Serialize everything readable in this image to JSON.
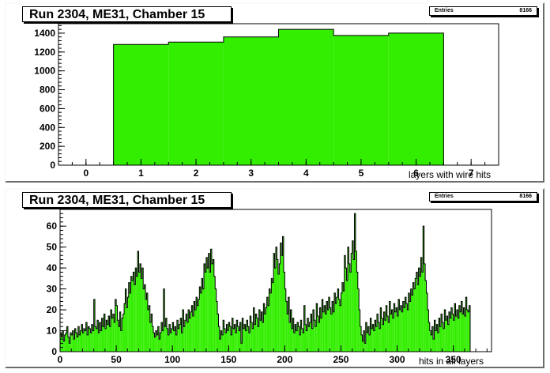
{
  "colors": {
    "fill": "#33ee00",
    "line": "#000000"
  },
  "chart_data": [
    {
      "type": "bar",
      "title": "Run 2304, ME31, Chamber 15",
      "stats": {
        "label": "Entries",
        "value": "8166"
      },
      "xlabel": "layers with wire hits",
      "xlim": [
        -0.5,
        7.5
      ],
      "ylim": [
        0,
        1500
      ],
      "xticks": [
        0,
        1,
        2,
        3,
        4,
        5,
        6,
        7
      ],
      "yticks": [
        0,
        200,
        400,
        600,
        800,
        1000,
        1200,
        1400
      ],
      "bins": [
        {
          "x": 1,
          "value": 1280
        },
        {
          "x": 2,
          "value": 1305
        },
        {
          "x": 3,
          "value": 1360
        },
        {
          "x": 4,
          "value": 1440
        },
        {
          "x": 5,
          "value": 1375
        },
        {
          "x": 6,
          "value": 1400
        }
      ]
    },
    {
      "type": "bar",
      "title": "Run 2304, ME31, Chamber 15",
      "stats": {
        "label": "Entries",
        "value": "8166"
      },
      "xlabel": "hits in all layers",
      "xlim": [
        0,
        384
      ],
      "ylim": [
        0,
        68
      ],
      "xticks": [
        0,
        50,
        100,
        150,
        200,
        250,
        300,
        350
      ],
      "yticks": [
        0,
        10,
        20,
        30,
        40,
        50,
        60
      ],
      "values": [
        9,
        7,
        10,
        5,
        8,
        9,
        12,
        7,
        4,
        9,
        8,
        10,
        6,
        11,
        9,
        7,
        12,
        8,
        10,
        13,
        9,
        11,
        10,
        14,
        8,
        12,
        11,
        9,
        13,
        10,
        25,
        12,
        11,
        15,
        9,
        14,
        10,
        16,
        12,
        18,
        11,
        15,
        13,
        17,
        12,
        20,
        16,
        18,
        14,
        25,
        22,
        15,
        12,
        19,
        10,
        16,
        18,
        23,
        30,
        21,
        26,
        33,
        28,
        36,
        34,
        38,
        32,
        40,
        36,
        48,
        38,
        42,
        35,
        40,
        30,
        32,
        25,
        28,
        20,
        22,
        14,
        18,
        12,
        9,
        7,
        10,
        8,
        12,
        6,
        9,
        14,
        10,
        30,
        12,
        16,
        11,
        8,
        13,
        9,
        11,
        14,
        10,
        12,
        8,
        15,
        11,
        13,
        16,
        9,
        20,
        12,
        15,
        18,
        14,
        20,
        16,
        19,
        22,
        17,
        24,
        20,
        26,
        22,
        25,
        31,
        28,
        35,
        30,
        42,
        38,
        45,
        40,
        47,
        38,
        49,
        42,
        44,
        36,
        30,
        24,
        18,
        12,
        6,
        10,
        8,
        15,
        11,
        9,
        13,
        10,
        14,
        12,
        8,
        16,
        11,
        13,
        9,
        15,
        12,
        10,
        14,
        4,
        16,
        11,
        13,
        10,
        15,
        12,
        9,
        17,
        14,
        11,
        21,
        13,
        18,
        16,
        12,
        20,
        15,
        19,
        14,
        23,
        18,
        21,
        26,
        22,
        30,
        28,
        35,
        33,
        47,
        40,
        50,
        44,
        37,
        42,
        52,
        46,
        55,
        38,
        30,
        24,
        18,
        26,
        14,
        20,
        11,
        16,
        9,
        13,
        10,
        14,
        12,
        8,
        15,
        11,
        9,
        22,
        13,
        10,
        16,
        12,
        14,
        18,
        11,
        20,
        15,
        12,
        23,
        17,
        14,
        21,
        16,
        25,
        19,
        22,
        18,
        24,
        20,
        26,
        21,
        18,
        24,
        19,
        28,
        23,
        26,
        30,
        25,
        22,
        28,
        33,
        29,
        46,
        40,
        34,
        50,
        42,
        38,
        47,
        53,
        44,
        66,
        48,
        38,
        30,
        20,
        12,
        8,
        5,
        10,
        4,
        14,
        9,
        12,
        8,
        16,
        11,
        13,
        10,
        15,
        12,
        18,
        14,
        11,
        21,
        16,
        13,
        19,
        15,
        22,
        17,
        14,
        24,
        18,
        20,
        16,
        23,
        19,
        21,
        17,
        25,
        20,
        22,
        19,
        24,
        21,
        26,
        23,
        20,
        28,
        24,
        30,
        27,
        33,
        30,
        35,
        38,
        32,
        40,
        36,
        45,
        38,
        60,
        42,
        34,
        28,
        20,
        14,
        10,
        8,
        12,
        6,
        15,
        10,
        13,
        9,
        16,
        12,
        18,
        14,
        11,
        20,
        15,
        17,
        13,
        19,
        16,
        21,
        18,
        15,
        23,
        17,
        20,
        16,
        22,
        19,
        24,
        18,
        21,
        17,
        26,
        20,
        19,
        22
      ]
    }
  ]
}
